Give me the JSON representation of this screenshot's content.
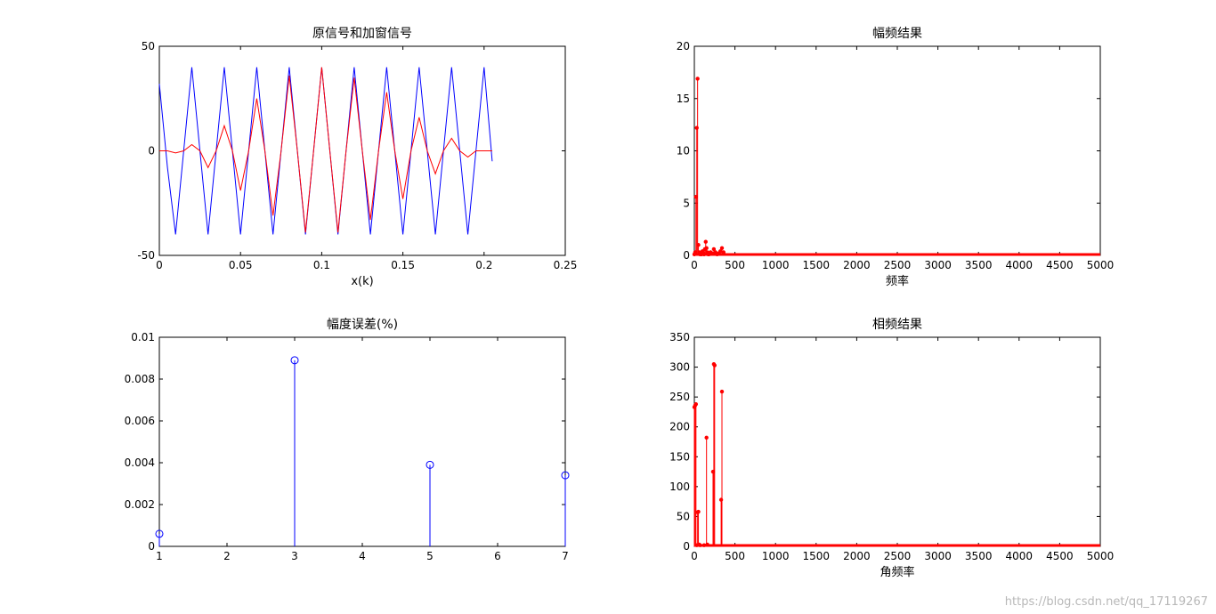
{
  "watermark": "https://blog.csdn.net/qq_17119267",
  "chart_data": [
    {
      "type": "line",
      "title": "原信号和加窗信号",
      "xlabel": "x(k)",
      "ylabel": "",
      "xlim": [
        0,
        0.25
      ],
      "ylim": [
        -50,
        50
      ],
      "xticks": [
        0,
        0.05,
        0.1,
        0.15,
        0.2,
        0.25
      ],
      "xtick_labels": [
        "0",
        "0.05",
        "0.1",
        "0.15",
        "0.2",
        "0.25"
      ],
      "yticks": [
        -50,
        0,
        50
      ],
      "ytick_labels": [
        "-50",
        "0",
        "50"
      ],
      "series": [
        {
          "color": "#0000ff",
          "x": [
            0,
            0.005,
            0.01,
            0.015,
            0.02,
            0.025,
            0.03,
            0.035,
            0.04,
            0.045,
            0.05,
            0.055,
            0.06,
            0.065,
            0.07,
            0.075,
            0.08,
            0.085,
            0.09,
            0.095,
            0.1,
            0.105,
            0.11,
            0.115,
            0.12,
            0.125,
            0.13,
            0.135,
            0.14,
            0.145,
            0.15,
            0.155,
            0.16,
            0.165,
            0.17,
            0.175,
            0.18,
            0.185,
            0.19,
            0.195,
            0.2,
            0.205
          ],
          "y": [
            32,
            -8,
            -40,
            0,
            40,
            0,
            -40,
            0,
            40,
            0,
            -40,
            0,
            40,
            0,
            -40,
            0,
            40,
            0,
            -40,
            0,
            40,
            0,
            -40,
            0,
            40,
            0,
            -40,
            0,
            40,
            0,
            -40,
            0,
            40,
            0,
            -40,
            0,
            40,
            0,
            -40,
            0,
            40,
            -5
          ]
        },
        {
          "color": "#ff0000",
          "x": [
            0,
            0.005,
            0.01,
            0.015,
            0.02,
            0.025,
            0.03,
            0.035,
            0.04,
            0.045,
            0.05,
            0.055,
            0.06,
            0.065,
            0.07,
            0.075,
            0.08,
            0.085,
            0.09,
            0.095,
            0.1,
            0.105,
            0.11,
            0.115,
            0.12,
            0.125,
            0.13,
            0.135,
            0.14,
            0.145,
            0.15,
            0.155,
            0.16,
            0.165,
            0.17,
            0.175,
            0.18,
            0.185,
            0.19,
            0.195,
            0.2,
            0.205
          ],
          "y": [
            0,
            0,
            -1,
            0,
            3,
            0,
            -8,
            0,
            12,
            0,
            -19,
            0,
            25,
            0,
            -31,
            0,
            36,
            0,
            -39,
            0,
            40,
            0,
            -39,
            0,
            35,
            0,
            -33,
            0,
            28,
            0,
            -23,
            0,
            16,
            0,
            -11,
            0,
            6,
            0,
            -3,
            0,
            0,
            0
          ]
        }
      ]
    },
    {
      "type": "stem",
      "title": "幅频结果",
      "xlabel": "频率",
      "ylabel": "",
      "xlim": [
        0,
        5000
      ],
      "ylim": [
        0,
        20
      ],
      "xticks": [
        0,
        500,
        1000,
        1500,
        2000,
        2500,
        3000,
        3500,
        4000,
        4500,
        5000
      ],
      "xtick_labels": [
        "0",
        "500",
        "1000",
        "1500",
        "2000",
        "2500",
        "3000",
        "3500",
        "4000",
        "4500",
        "5000"
      ],
      "yticks": [
        0,
        5,
        10,
        15,
        20
      ],
      "ytick_labels": [
        "0",
        "5",
        "10",
        "15",
        "20"
      ],
      "color": "#ff0000",
      "x": [
        0,
        10,
        20,
        30,
        40,
        50,
        60,
        70,
        80,
        90,
        100,
        110,
        120,
        130,
        140,
        150,
        160,
        170,
        180,
        200,
        220,
        240,
        260,
        280,
        300,
        320,
        340,
        360
      ],
      "y": [
        0.1,
        0.3,
        5.6,
        12.2,
        16.9,
        1.0,
        0.3,
        0.1,
        0.2,
        0.1,
        0.4,
        0.2,
        0.1,
        0.6,
        1.3,
        0.7,
        0.3,
        0.1,
        0.1,
        0.3,
        0.2,
        0.6,
        0.3,
        0.1,
        0.2,
        0.4,
        0.7,
        0.3
      ],
      "baseline_range": [
        0,
        5000
      ]
    },
    {
      "type": "stem",
      "title": "幅度误差(%)",
      "xlabel": "",
      "ylabel": "",
      "xlim": [
        1,
        7
      ],
      "ylim": [
        0,
        0.01
      ],
      "xticks": [
        1,
        2,
        3,
        4,
        5,
        6,
        7
      ],
      "xtick_labels": [
        "1",
        "2",
        "3",
        "4",
        "5",
        "6",
        "7"
      ],
      "yticks": [
        0,
        0.002,
        0.004,
        0.006,
        0.008,
        0.01
      ],
      "ytick_labels": [
        "0",
        "0.002",
        "0.004",
        "0.006",
        "0.008",
        "0.01"
      ],
      "color": "#0000ff",
      "x": [
        1,
        3,
        5,
        7
      ],
      "y": [
        0.0006,
        0.0089,
        0.0039,
        0.0034
      ]
    },
    {
      "type": "stem",
      "title": "相频结果",
      "xlabel": "角频率",
      "ylabel": "",
      "xlim": [
        0,
        5000
      ],
      "ylim": [
        0,
        350
      ],
      "xticks": [
        0,
        500,
        1000,
        1500,
        2000,
        2500,
        3000,
        3500,
        4000,
        4500,
        5000
      ],
      "xtick_labels": [
        "0",
        "500",
        "1000",
        "1500",
        "2000",
        "2500",
        "3000",
        "3500",
        "4000",
        "4500",
        "5000"
      ],
      "yticks": [
        0,
        50,
        100,
        150,
        200,
        250,
        300,
        350
      ],
      "ytick_labels": [
        "0",
        "50",
        "100",
        "150",
        "200",
        "250",
        "300",
        "350"
      ],
      "color": "#ff0000",
      "x": [
        0,
        10,
        20,
        30,
        40,
        50,
        60,
        70,
        120,
        150,
        160,
        230,
        240,
        250,
        330,
        340
      ],
      "y": [
        233,
        236,
        238,
        2,
        57,
        58,
        3,
        2,
        2,
        182,
        3,
        125,
        305,
        303,
        78,
        259
      ],
      "baseline_range": [
        0,
        5000
      ]
    }
  ]
}
